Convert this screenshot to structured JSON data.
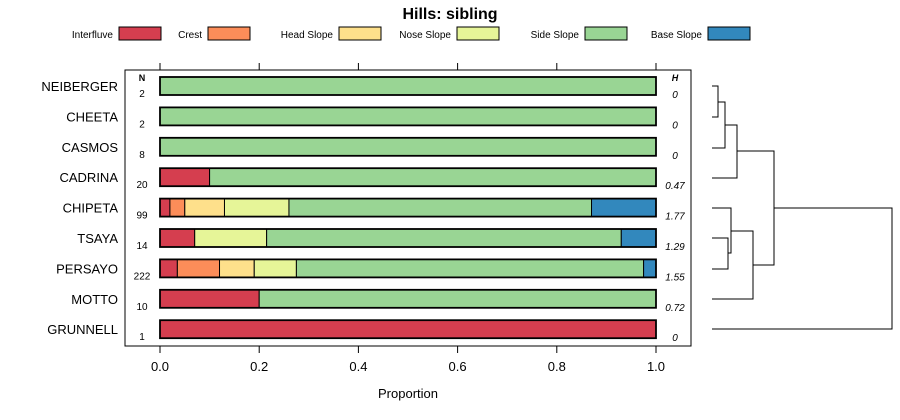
{
  "chart_data": {
    "type": "bar",
    "orientation": "horizontal",
    "stacked": true,
    "title": "Hills: sibling",
    "xlabel": "Proportion",
    "xlim": [
      0,
      1
    ],
    "x_ticks": [
      "0.0",
      "0.2",
      "0.4",
      "0.6",
      "0.8",
      "1.0"
    ],
    "n_header": "N",
    "h_header": "H",
    "legend_position": "top",
    "categories": [
      "NEIBERGER",
      "CHEETA",
      "CASMOS",
      "CADRINA",
      "CHIPETA",
      "TSAYA",
      "PERSAYO",
      "MOTTO",
      "GRUNNELL"
    ],
    "n": [
      "2",
      "2",
      "8",
      "20",
      "99",
      "14",
      "222",
      "10",
      "1"
    ],
    "h": [
      "0",
      "0",
      "0",
      "0.47",
      "1.77",
      "1.29",
      "1.55",
      "0.72",
      "0"
    ],
    "series": [
      {
        "name": "Interfluve",
        "color": "#D53E4F",
        "values": [
          0,
          0,
          0,
          0.1,
          0.02,
          0.07,
          0.035,
          0.2,
          1.0
        ]
      },
      {
        "name": "Crest",
        "color": "#FC8D59",
        "values": [
          0,
          0,
          0,
          0,
          0.03,
          0,
          0.085,
          0,
          0
        ]
      },
      {
        "name": "Head Slope",
        "color": "#FEE08B",
        "values": [
          0,
          0,
          0,
          0,
          0.08,
          0,
          0.07,
          0,
          0
        ]
      },
      {
        "name": "Nose Slope",
        "color": "#E6F598",
        "values": [
          0,
          0,
          0,
          0,
          0.13,
          0.145,
          0.085,
          0,
          0
        ]
      },
      {
        "name": "Side Slope",
        "color": "#99D594",
        "values": [
          1.0,
          1.0,
          1.0,
          0.9,
          0.61,
          0.715,
          0.7,
          0.8,
          0
        ]
      },
      {
        "name": "Base Slope",
        "color": "#3288BD",
        "values": [
          0,
          0,
          0,
          0,
          0.13,
          0.07,
          0.025,
          0,
          0
        ]
      }
    ]
  }
}
